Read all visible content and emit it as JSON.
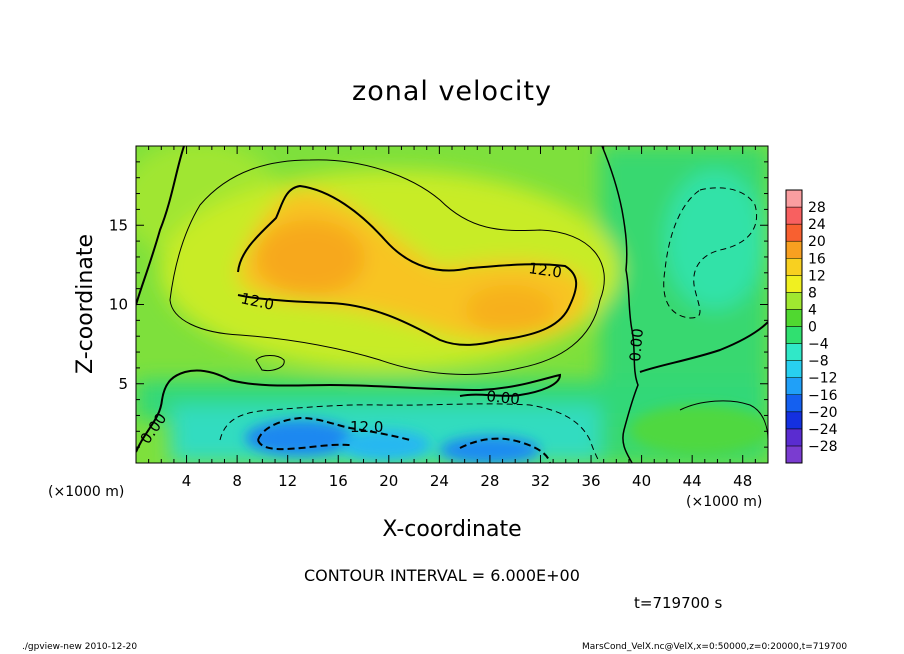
{
  "chart_data": {
    "type": "heatmap",
    "title": "zonal velocity",
    "xlabel": "X-coordinate",
    "ylabel": "Z-coordinate",
    "x_unit_left": "(×1000 m)",
    "x_unit_right": "(×1000 m)",
    "xlim": [
      0,
      50
    ],
    "ylim": [
      0,
      20
    ],
    "x_ticks": [
      "4",
      "8",
      "12",
      "16",
      "20",
      "24",
      "28",
      "32",
      "36",
      "40",
      "44",
      "48"
    ],
    "y_ticks": [
      "5",
      "10",
      "15"
    ],
    "colorbar": {
      "labels": [
        "28",
        "24",
        "20",
        "16",
        "12",
        "8",
        "4",
        "0",
        "−4",
        "−8",
        "−12",
        "−16",
        "−20",
        "−24",
        "−28"
      ],
      "values": [
        28,
        24,
        20,
        16,
        12,
        8,
        4,
        0,
        -4,
        -8,
        -12,
        -16,
        -20,
        -24,
        -28
      ]
    },
    "contour_interval": "CONTOUR INTERVAL = 6.000E+00",
    "contour_labels": [
      "12.0",
      "12.0",
      "0.00",
      "0.00",
      "0.00",
      "12.0"
    ],
    "time": "t=719700 s",
    "field_description": "Positive jet (12–18) centered near x=14,z=13 and x=30,z=10; negative region (-12 to -16) near surface at x=10–34; zero line near z=5 and x=38"
  },
  "footer": {
    "left": "./gpview-new   2010-12-20",
    "right": "MarsCond_VelX.nc@VelX,x=0:50000,z=0:20000,t=719700"
  },
  "colors": {
    "scale": [
      "#7a3cd0",
      "#5a2cd0",
      "#1430e0",
      "#1460f0",
      "#20a0f8",
      "#28d0f0",
      "#30e8c8",
      "#30e070",
      "#50d830",
      "#a0e830",
      "#f0f020",
      "#f8d020",
      "#f8a020",
      "#f86030",
      "#f86060",
      "#fa9ea0"
    ]
  }
}
